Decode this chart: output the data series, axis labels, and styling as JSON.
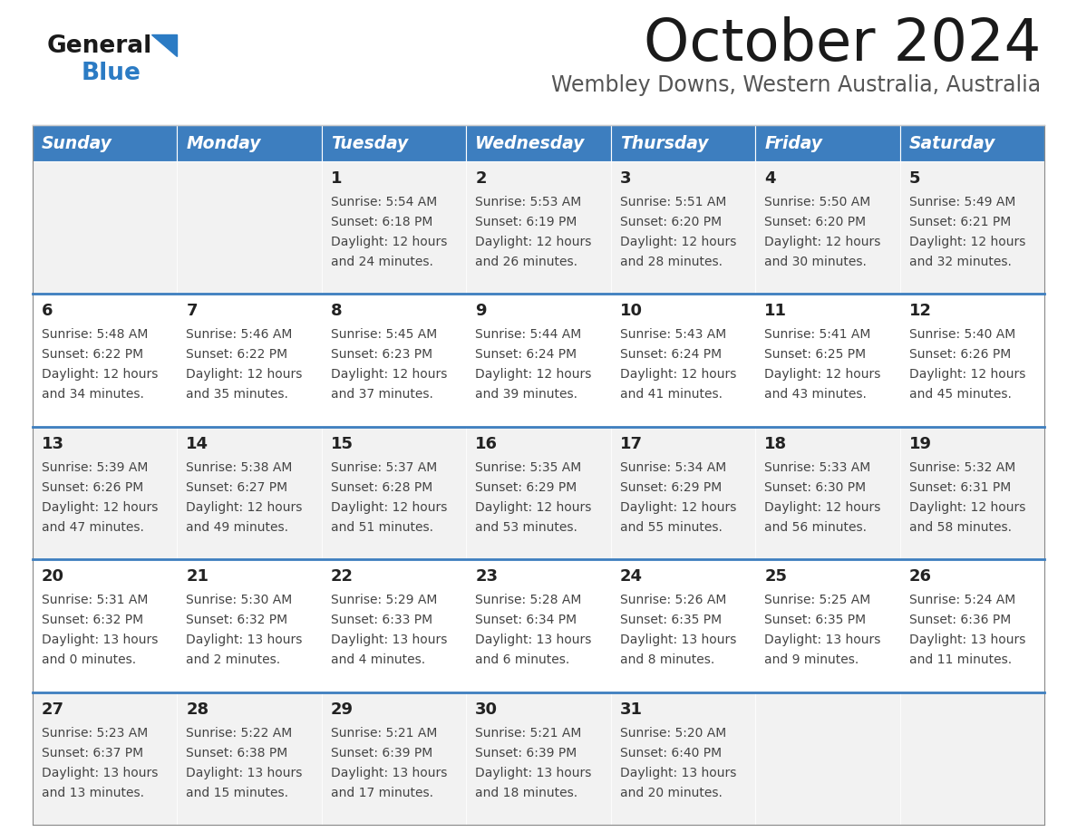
{
  "title": "October 2024",
  "subtitle": "Wembley Downs, Western Australia, Australia",
  "days_of_week": [
    "Sunday",
    "Monday",
    "Tuesday",
    "Wednesday",
    "Thursday",
    "Friday",
    "Saturday"
  ],
  "header_bg": "#3d7ebf",
  "header_text": "#ffffff",
  "row_bg_even": "#f2f2f2",
  "row_bg_odd": "#ffffff",
  "cell_text_color": "#444444",
  "day_num_color": "#222222",
  "divider_color": "#3d7ebf",
  "logo_color_general": "#1a1a1a",
  "logo_color_blue": "#2b7bc4",
  "title_color": "#1a1a1a",
  "subtitle_color": "#555555",
  "calendar_data": [
    [
      {
        "day": "",
        "sunrise": "",
        "sunset": "",
        "hours": "",
        "minutes": ""
      },
      {
        "day": "",
        "sunrise": "",
        "sunset": "",
        "hours": "",
        "minutes": ""
      },
      {
        "day": "1",
        "sunrise": "5:54 AM",
        "sunset": "6:18 PM",
        "hours": "12",
        "minutes": "24"
      },
      {
        "day": "2",
        "sunrise": "5:53 AM",
        "sunset": "6:19 PM",
        "hours": "12",
        "minutes": "26"
      },
      {
        "day": "3",
        "sunrise": "5:51 AM",
        "sunset": "6:20 PM",
        "hours": "12",
        "minutes": "28"
      },
      {
        "day": "4",
        "sunrise": "5:50 AM",
        "sunset": "6:20 PM",
        "hours": "12",
        "minutes": "30"
      },
      {
        "day": "5",
        "sunrise": "5:49 AM",
        "sunset": "6:21 PM",
        "hours": "12",
        "minutes": "32"
      }
    ],
    [
      {
        "day": "6",
        "sunrise": "5:48 AM",
        "sunset": "6:22 PM",
        "hours": "12",
        "minutes": "34"
      },
      {
        "day": "7",
        "sunrise": "5:46 AM",
        "sunset": "6:22 PM",
        "hours": "12",
        "minutes": "35"
      },
      {
        "day": "8",
        "sunrise": "5:45 AM",
        "sunset": "6:23 PM",
        "hours": "12",
        "minutes": "37"
      },
      {
        "day": "9",
        "sunrise": "5:44 AM",
        "sunset": "6:24 PM",
        "hours": "12",
        "minutes": "39"
      },
      {
        "day": "10",
        "sunrise": "5:43 AM",
        "sunset": "6:24 PM",
        "hours": "12",
        "minutes": "41"
      },
      {
        "day": "11",
        "sunrise": "5:41 AM",
        "sunset": "6:25 PM",
        "hours": "12",
        "minutes": "43"
      },
      {
        "day": "12",
        "sunrise": "5:40 AM",
        "sunset": "6:26 PM",
        "hours": "12",
        "minutes": "45"
      }
    ],
    [
      {
        "day": "13",
        "sunrise": "5:39 AM",
        "sunset": "6:26 PM",
        "hours": "12",
        "minutes": "47"
      },
      {
        "day": "14",
        "sunrise": "5:38 AM",
        "sunset": "6:27 PM",
        "hours": "12",
        "minutes": "49"
      },
      {
        "day": "15",
        "sunrise": "5:37 AM",
        "sunset": "6:28 PM",
        "hours": "12",
        "minutes": "51"
      },
      {
        "day": "16",
        "sunrise": "5:35 AM",
        "sunset": "6:29 PM",
        "hours": "12",
        "minutes": "53"
      },
      {
        "day": "17",
        "sunrise": "5:34 AM",
        "sunset": "6:29 PM",
        "hours": "12",
        "minutes": "55"
      },
      {
        "day": "18",
        "sunrise": "5:33 AM",
        "sunset": "6:30 PM",
        "hours": "12",
        "minutes": "56"
      },
      {
        "day": "19",
        "sunrise": "5:32 AM",
        "sunset": "6:31 PM",
        "hours": "12",
        "minutes": "58"
      }
    ],
    [
      {
        "day": "20",
        "sunrise": "5:31 AM",
        "sunset": "6:32 PM",
        "hours": "13",
        "minutes": "0"
      },
      {
        "day": "21",
        "sunrise": "5:30 AM",
        "sunset": "6:32 PM",
        "hours": "13",
        "minutes": "2"
      },
      {
        "day": "22",
        "sunrise": "5:29 AM",
        "sunset": "6:33 PM",
        "hours": "13",
        "minutes": "4"
      },
      {
        "day": "23",
        "sunrise": "5:28 AM",
        "sunset": "6:34 PM",
        "hours": "13",
        "minutes": "6"
      },
      {
        "day": "24",
        "sunrise": "5:26 AM",
        "sunset": "6:35 PM",
        "hours": "13",
        "minutes": "8"
      },
      {
        "day": "25",
        "sunrise": "5:25 AM",
        "sunset": "6:35 PM",
        "hours": "13",
        "minutes": "9"
      },
      {
        "day": "26",
        "sunrise": "5:24 AM",
        "sunset": "6:36 PM",
        "hours": "13",
        "minutes": "11"
      }
    ],
    [
      {
        "day": "27",
        "sunrise": "5:23 AM",
        "sunset": "6:37 PM",
        "hours": "13",
        "minutes": "13"
      },
      {
        "day": "28",
        "sunrise": "5:22 AM",
        "sunset": "6:38 PM",
        "hours": "13",
        "minutes": "15"
      },
      {
        "day": "29",
        "sunrise": "5:21 AM",
        "sunset": "6:39 PM",
        "hours": "13",
        "minutes": "17"
      },
      {
        "day": "30",
        "sunrise": "5:21 AM",
        "sunset": "6:39 PM",
        "hours": "13",
        "minutes": "18"
      },
      {
        "day": "31",
        "sunrise": "5:20 AM",
        "sunset": "6:40 PM",
        "hours": "13",
        "minutes": "20"
      },
      {
        "day": "",
        "sunrise": "",
        "sunset": "",
        "hours": "",
        "minutes": ""
      },
      {
        "day": "",
        "sunrise": "",
        "sunset": "",
        "hours": "",
        "minutes": ""
      }
    ]
  ]
}
